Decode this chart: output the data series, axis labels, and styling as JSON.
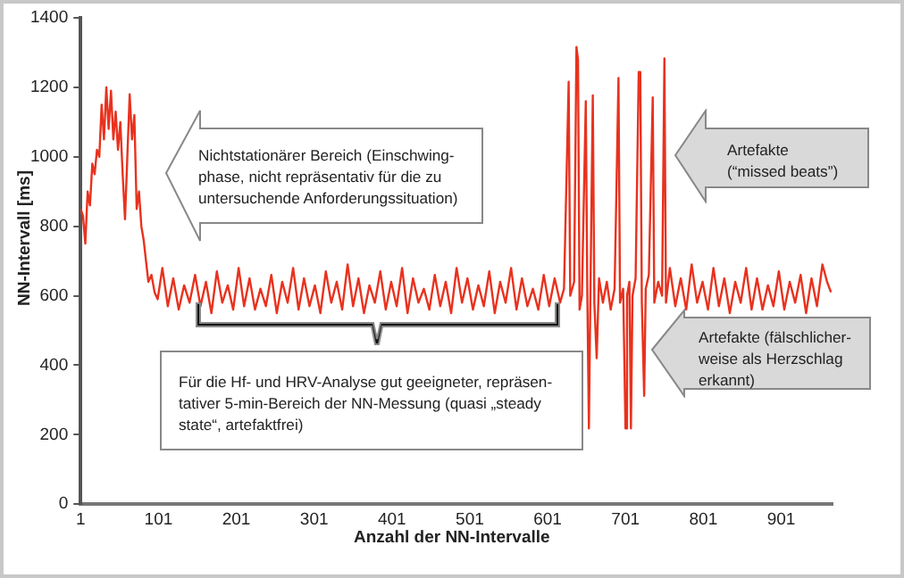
{
  "chart_data": {
    "type": "line",
    "xlabel": "Anzahl der NN-Intervalle",
    "ylabel": "NN-Intervall [ms]",
    "xlim": [
      1,
      967
    ],
    "xticks": [
      1,
      101,
      201,
      301,
      401,
      501,
      601,
      701,
      801,
      901
    ],
    "ylim": [
      0,
      1400
    ],
    "yticks": [
      0,
      200,
      400,
      600,
      800,
      1000,
      1200,
      1400
    ],
    "grid": false,
    "legend": false,
    "marker": "none",
    "line_style": "solid",
    "annotations": [
      "Nichtstationärer Bereich (Einschwing-\nphase, nicht repräsentativ für die zu\nuntersuchende Anforderungssituation)",
      "Artefakte\n(“missed beats”)",
      "Artefakte (fälschlicher-\nweise als Herzschlag\nerkannt)",
      "Für die Hf- und HRV-Analyse gut geeigneter, repräsen-\ntativer 5-min-Bereich der NN-Messung (quasi „steady\nstate“, artefaktfrei)"
    ],
    "series": [
      {
        "color": "#e8321e",
        "x": [
          1,
          4,
          7,
          10,
          13,
          16,
          19,
          22,
          25,
          28,
          31,
          34,
          37,
          40,
          43,
          46,
          49,
          52,
          55,
          58,
          61,
          64,
          67,
          70,
          73,
          76,
          79,
          82,
          85,
          88,
          92,
          96,
          100,
          106,
          113,
          120,
          127,
          134,
          141,
          148,
          155,
          162,
          169,
          176,
          183,
          190,
          197,
          204,
          211,
          218,
          225,
          232,
          239,
          246,
          253,
          260,
          267,
          274,
          281,
          288,
          295,
          302,
          309,
          316,
          323,
          330,
          337,
          344,
          351,
          358,
          365,
          372,
          379,
          386,
          393,
          400,
          407,
          414,
          421,
          428,
          435,
          442,
          449,
          456,
          463,
          470,
          477,
          484,
          491,
          498,
          505,
          512,
          519,
          526,
          533,
          540,
          547,
          554,
          561,
          568,
          575,
          582,
          589,
          596,
          603,
          610,
          617,
          622,
          628,
          630,
          635,
          638,
          640,
          642,
          645,
          650,
          652,
          654,
          656,
          659,
          661,
          664,
          667,
          672,
          677,
          682,
          687,
          692,
          694,
          698,
          701,
          703,
          706,
          708,
          710,
          714,
          718,
          720,
          722,
          725,
          727,
          731,
          736,
          738,
          743,
          748,
          751,
          753,
          758,
          765,
          772,
          779,
          786,
          793,
          800,
          807,
          814,
          821,
          828,
          835,
          842,
          849,
          856,
          863,
          870,
          877,
          884,
          891,
          898,
          905,
          912,
          919,
          926,
          933,
          940,
          947,
          954,
          960,
          965
        ],
        "values": [
          850,
          830,
          750,
          900,
          860,
          980,
          950,
          1020,
          1000,
          1150,
          1050,
          1200,
          1080,
          1190,
          1050,
          1130,
          1020,
          1100,
          950,
          820,
          1000,
          1180,
          1050,
          1120,
          850,
          900,
          800,
          760,
          700,
          640,
          660,
          610,
          590,
          680,
          570,
          650,
          560,
          630,
          580,
          660,
          570,
          640,
          550,
          670,
          580,
          630,
          560,
          680,
          570,
          650,
          560,
          620,
          570,
          660,
          550,
          640,
          580,
          680,
          560,
          650,
          570,
          630,
          550,
          670,
          580,
          640,
          560,
          690,
          570,
          650,
          550,
          630,
          580,
          670,
          560,
          640,
          570,
          680,
          550,
          650,
          580,
          620,
          560,
          660,
          570,
          640,
          550,
          680,
          580,
          650,
          560,
          630,
          570,
          670,
          550,
          640,
          580,
          680,
          560,
          650,
          570,
          620,
          560,
          660,
          570,
          650,
          580,
          620,
          1216,
          600,
          640,
          1316,
          1280,
          560,
          600,
          1160,
          600,
          218,
          620,
          1177,
          580,
          420,
          650,
          580,
          640,
          560,
          620,
          1227,
          580,
          620,
          218,
          600,
          640,
          218,
          600,
          650,
          1244,
          1244,
          580,
          312,
          620,
          660,
          1171,
          580,
          640,
          600,
          1283,
          580,
          680,
          570,
          650,
          560,
          690,
          580,
          640,
          560,
          680,
          570,
          650,
          550,
          640,
          580,
          680,
          560,
          650,
          560,
          630,
          570,
          670,
          560,
          640,
          580,
          660,
          550,
          650,
          570,
          690,
          640,
          610
        ]
      }
    ]
  }
}
